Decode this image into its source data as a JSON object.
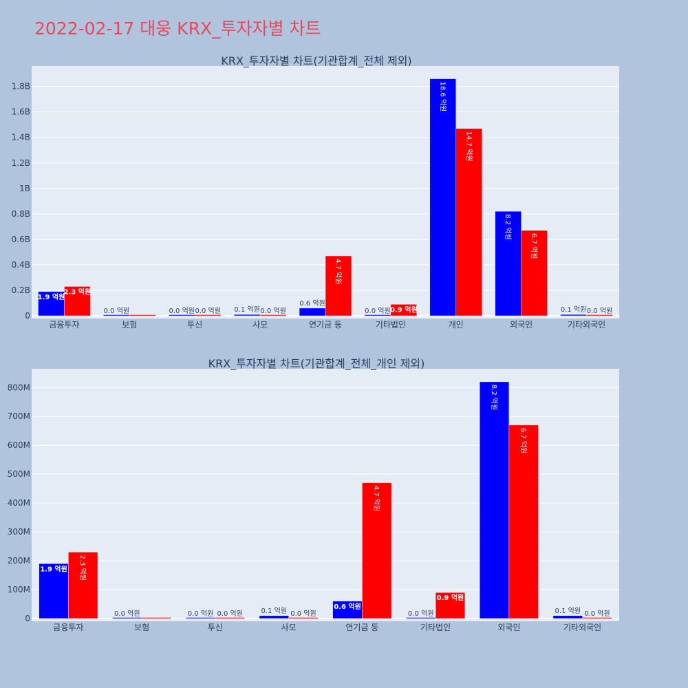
{
  "page_title": "2022-02-17 대웅 KRX_투자자별 차트",
  "colors": {
    "background": "#b0c4de",
    "plot_bg": "#e5ecf6",
    "title": "#e8495b",
    "series_blue": "#0000ff",
    "series_red": "#ff0000"
  },
  "chart_data": [
    {
      "type": "bar",
      "title": "KRX_투자자별 차트(기관합계_전체 제외)",
      "categories": [
        "금융투자",
        "보험",
        "투신",
        "사모",
        "연기금 등",
        "기타법인",
        "개인",
        "외국인",
        "기타외국인"
      ],
      "series": [
        {
          "color": "#0000ff",
          "values": [
            190000000,
            0,
            0,
            10000000,
            60000000,
            0,
            1860000000,
            820000000,
            10000000
          ],
          "labels": [
            "1.9 억원",
            "0.0 억원",
            "0.0 억원",
            "0.1 억원",
            "0.6 억원",
            "0.0 억원",
            "18.6 억원",
            "8.2 억원",
            "0.1 억원"
          ]
        },
        {
          "color": "#ff0000",
          "values": [
            230000000,
            0,
            0,
            0,
            470000000,
            90000000,
            1470000000,
            670000000,
            0
          ],
          "labels": [
            "2.3 억원",
            "",
            "0.0 억원",
            "0.0 억원",
            "4.7 억원",
            "0.9 억원",
            "14.7 억원",
            "6.7 억원",
            "0.0 억원"
          ]
        }
      ],
      "ylim": [
        0,
        1960000000
      ],
      "yticks": [
        0,
        200000000,
        400000000,
        600000000,
        800000000,
        1000000000,
        1200000000,
        1400000000,
        1600000000,
        1800000000
      ],
      "ytick_labels": [
        "0",
        "0.2B",
        "0.4B",
        "0.6B",
        "0.8B",
        "1B",
        "1.2B",
        "1.4B",
        "1.6B",
        "1.8B"
      ],
      "grid": true,
      "legend": "none"
    },
    {
      "type": "bar",
      "title": "KRX_투자자별 차트(기관합계_전체_개인 제외)",
      "categories": [
        "금융투자",
        "보험",
        "투신",
        "사모",
        "연기금 등",
        "기타법인",
        "외국인",
        "기타외국인"
      ],
      "series": [
        {
          "color": "#0000ff",
          "values": [
            190000000,
            0,
            0,
            10000000,
            60000000,
            0,
            820000000,
            10000000
          ],
          "labels": [
            "1.9 억원",
            "0.0 억원",
            "0.0 억원",
            "0.1 억원",
            "0.6 억원",
            "0.0 억원",
            "8.2 억원",
            "0.1 억원"
          ]
        },
        {
          "color": "#ff0000",
          "values": [
            230000000,
            0,
            0,
            0,
            470000000,
            90000000,
            670000000,
            0
          ],
          "labels": [
            "2.3 억원",
            "",
            "0.0 억원",
            "0.0 억원",
            "4.7 억원",
            "0.9 억원",
            "6.7 억원",
            "0.0 억원"
          ]
        }
      ],
      "ylim": [
        0,
        865000000
      ],
      "yticks": [
        0,
        100000000,
        200000000,
        300000000,
        400000000,
        500000000,
        600000000,
        700000000,
        800000000
      ],
      "ytick_labels": [
        "0",
        "100M",
        "200M",
        "300M",
        "400M",
        "500M",
        "600M",
        "700M",
        "800M"
      ],
      "grid": true,
      "legend": "none"
    }
  ]
}
